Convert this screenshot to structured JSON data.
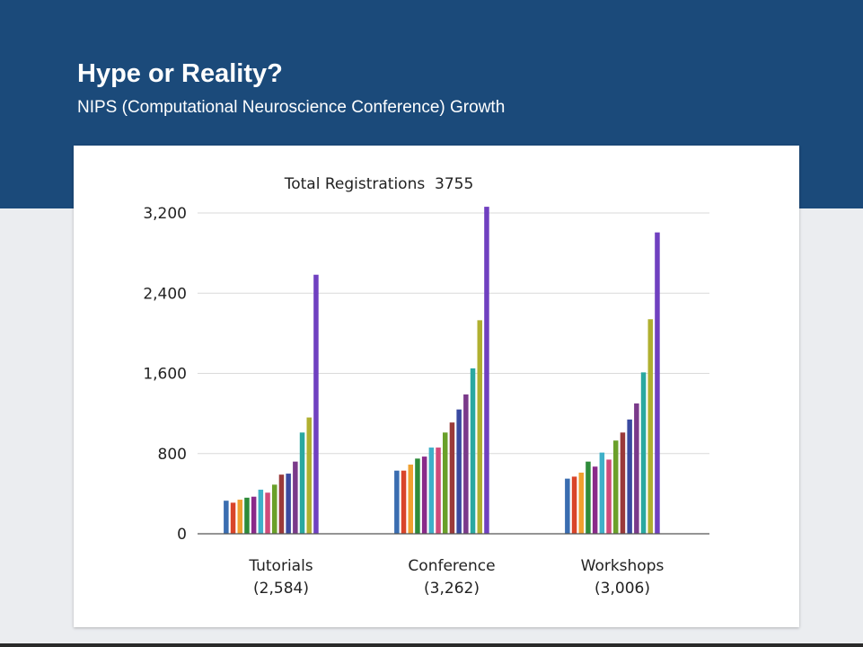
{
  "slide": {
    "title": "Hype or Reality?",
    "subtitle": "NIPS (Computational Neuroscience Conference) Growth"
  },
  "colors": {
    "header_band": "#1b4a7a",
    "series": [
      "#3a6db0",
      "#d9452a",
      "#f0a030",
      "#2e8b3a",
      "#8a2a8a",
      "#3fb0c8",
      "#d04a7a",
      "#6aa02a",
      "#9a3a3a",
      "#3a4aa0",
      "#7a3a8a",
      "#2aa8a0",
      "#b0b030",
      "#7040c0"
    ]
  },
  "chart_data": {
    "type": "bar",
    "title": "Total Registrations  3755",
    "xlabel": "",
    "ylabel": "",
    "ylim": [
      0,
      3200
    ],
    "yticks": [
      0,
      800,
      1600,
      2400,
      3200
    ],
    "ytick_labels": [
      "0",
      "800",
      "1,600",
      "2,400",
      "3,200"
    ],
    "grid": true,
    "legend": "none",
    "groups": [
      {
        "label_line1": "Tutorials",
        "label_line2": "(2,584)",
        "values": [
          330,
          310,
          340,
          360,
          370,
          440,
          410,
          490,
          590,
          600,
          720,
          1010,
          1160,
          2584
        ]
      },
      {
        "label_line1": "Conference",
        "label_line2": "(3,262)",
        "values": [
          630,
          630,
          690,
          750,
          770,
          860,
          860,
          1010,
          1110,
          1240,
          1390,
          1650,
          2130,
          3262
        ]
      },
      {
        "label_line1": "Workshops",
        "label_line2": "(3,006)",
        "values": [
          550,
          570,
          610,
          720,
          670,
          810,
          740,
          930,
          1010,
          1140,
          1300,
          1610,
          2140,
          3006
        ]
      }
    ]
  }
}
